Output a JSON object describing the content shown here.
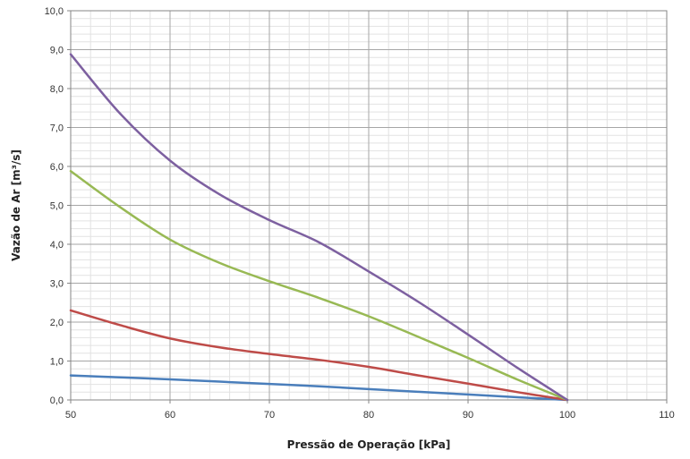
{
  "chart_data": {
    "type": "line",
    "title": "",
    "xlabel": "Pressão de Operação [kPa]",
    "ylabel": "Vazão de Ar [m³/s]",
    "xlim": [
      50,
      110
    ],
    "ylim": [
      0,
      10
    ],
    "x_ticks": [
      "50",
      "60",
      "70",
      "80",
      "90",
      "100",
      "110"
    ],
    "y_ticks": [
      "0,0",
      "1,0",
      "2,0",
      "3,0",
      "4,0",
      "5,0",
      "6,0",
      "7,0",
      "8,0",
      "9,0",
      "10,0"
    ],
    "grid": true,
    "x_minor_step": 2,
    "y_minor_step": 0.2,
    "series": [
      {
        "color": "#4a7ebb",
        "x": [
          50,
          55,
          60,
          65,
          70,
          75,
          80,
          85,
          90,
          95,
          100
        ],
        "y": [
          0.63,
          0.58,
          0.53,
          0.47,
          0.41,
          0.35,
          0.28,
          0.21,
          0.14,
          0.07,
          0.0
        ]
      },
      {
        "color": "#be4b48",
        "x": [
          50,
          55,
          60,
          65,
          70,
          75,
          80,
          85,
          90,
          95,
          100
        ],
        "y": [
          2.3,
          1.92,
          1.58,
          1.35,
          1.18,
          1.03,
          0.85,
          0.63,
          0.42,
          0.2,
          0.0
        ]
      },
      {
        "color": "#98b954",
        "x": [
          50,
          55,
          60,
          65,
          70,
          75,
          80,
          85,
          90,
          95,
          100
        ],
        "y": [
          5.88,
          4.95,
          4.12,
          3.52,
          3.05,
          2.62,
          2.15,
          1.62,
          1.08,
          0.52,
          0.0
        ]
      },
      {
        "color": "#7d60a0",
        "x": [
          50,
          55,
          60,
          65,
          70,
          75,
          80,
          85,
          90,
          95,
          100
        ],
        "y": [
          8.88,
          7.35,
          6.15,
          5.28,
          4.62,
          4.05,
          3.3,
          2.52,
          1.68,
          0.82,
          0.0
        ]
      }
    ]
  }
}
